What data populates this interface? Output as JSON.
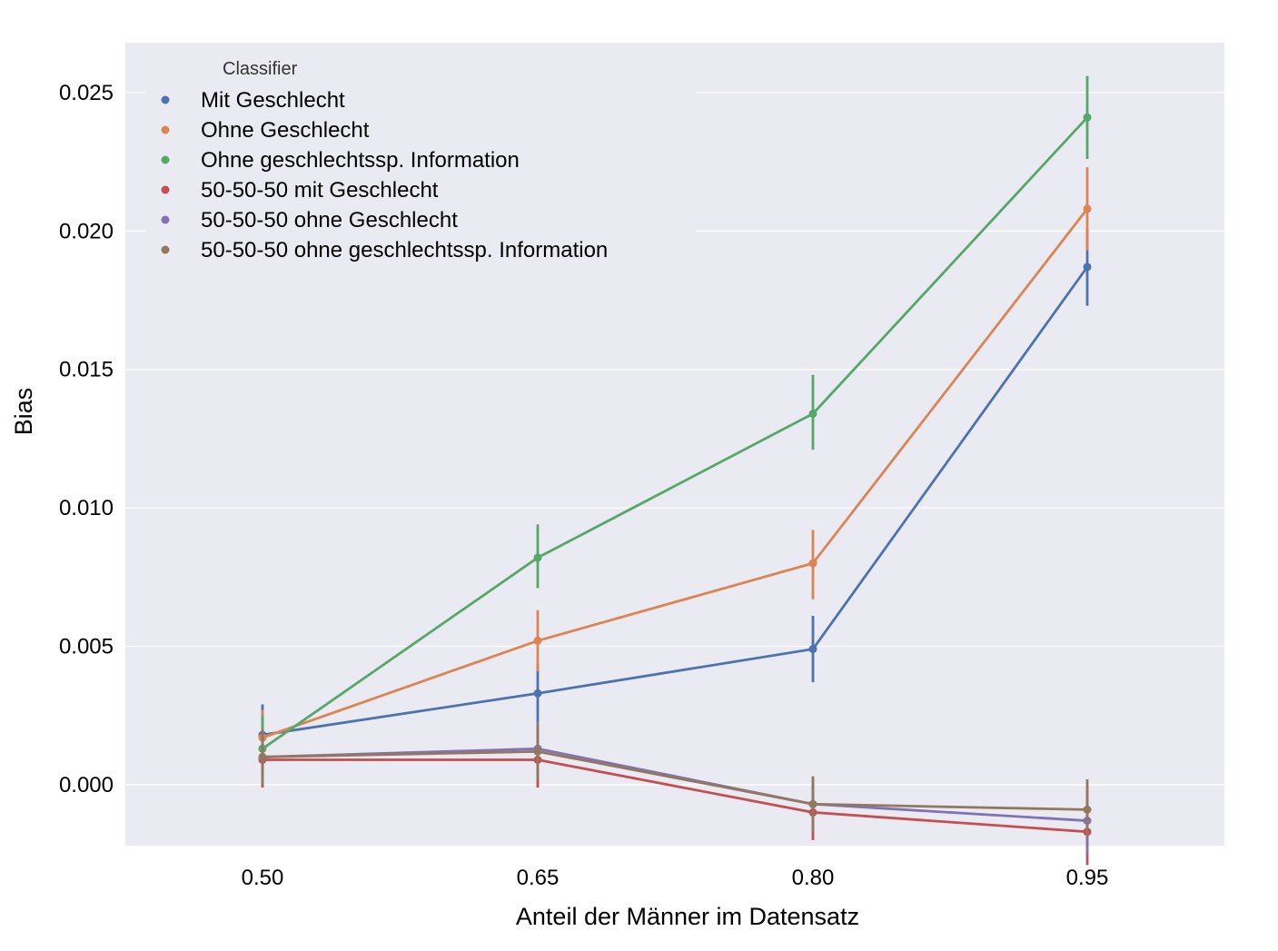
{
  "chart_data": {
    "type": "line",
    "xlabel": "Anteil der Männer im Datensatz",
    "ylabel": "Bias",
    "categories": [
      "0.50",
      "0.65",
      "0.80",
      "0.95"
    ],
    "ylim": [
      -0.0022,
      0.0268
    ],
    "yticks": [
      "0.000",
      "0.005",
      "0.010",
      "0.015",
      "0.020",
      "0.025"
    ],
    "grid": true,
    "legend": {
      "title": "Classifier",
      "placement": "top-left"
    },
    "series": [
      {
        "name": "Mit Geschlecht",
        "color": "#4c72b0",
        "values": [
          0.0018,
          0.0033,
          0.0049,
          0.0187
        ],
        "err_low": [
          0.0007,
          0.0022,
          0.0037,
          0.0173
        ],
        "err_high": [
          0.0029,
          0.0044,
          0.0061,
          0.0201
        ]
      },
      {
        "name": "Ohne Geschlecht",
        "color": "#dd8452",
        "values": [
          0.0017,
          0.0052,
          0.008,
          0.0208
        ],
        "err_low": [
          0.0007,
          0.0041,
          0.0067,
          0.0193
        ],
        "err_high": [
          0.0027,
          0.0063,
          0.0092,
          0.0223
        ]
      },
      {
        "name": "Ohne geschlechtssp. Information",
        "color": "#55a868",
        "values": [
          0.0013,
          0.0082,
          0.0134,
          0.0241
        ],
        "err_low": [
          0.0003,
          0.0071,
          0.0121,
          0.0226
        ],
        "err_high": [
          0.0025,
          0.0094,
          0.0148,
          0.0256
        ]
      },
      {
        "name": "50-50-50 mit Geschlecht",
        "color": "#c44e52",
        "values": [
          0.0009,
          0.0009,
          -0.001,
          -0.0017
        ],
        "err_low": [
          -0.0001,
          -0.0001,
          -0.002,
          -0.0029
        ],
        "err_high": [
          0.0019,
          0.0019,
          0.0,
          -0.0005
        ]
      },
      {
        "name": "50-50-50 ohne Geschlecht",
        "color": "#8172b3",
        "values": [
          0.001,
          0.0013,
          -0.0007,
          -0.0013
        ],
        "err_low": [
          0.0,
          0.0003,
          -0.0017,
          -0.0025
        ],
        "err_high": [
          0.002,
          0.0023,
          0.0003,
          -0.0001
        ]
      },
      {
        "name": "50-50-50 ohne geschlechtssp. Information",
        "color": "#937860",
        "values": [
          0.001,
          0.0012,
          -0.0007,
          -0.0009
        ],
        "err_low": [
          0.0,
          0.0002,
          -0.0017,
          -0.0019
        ],
        "err_high": [
          0.002,
          0.0022,
          0.0003,
          0.0002
        ]
      }
    ]
  }
}
